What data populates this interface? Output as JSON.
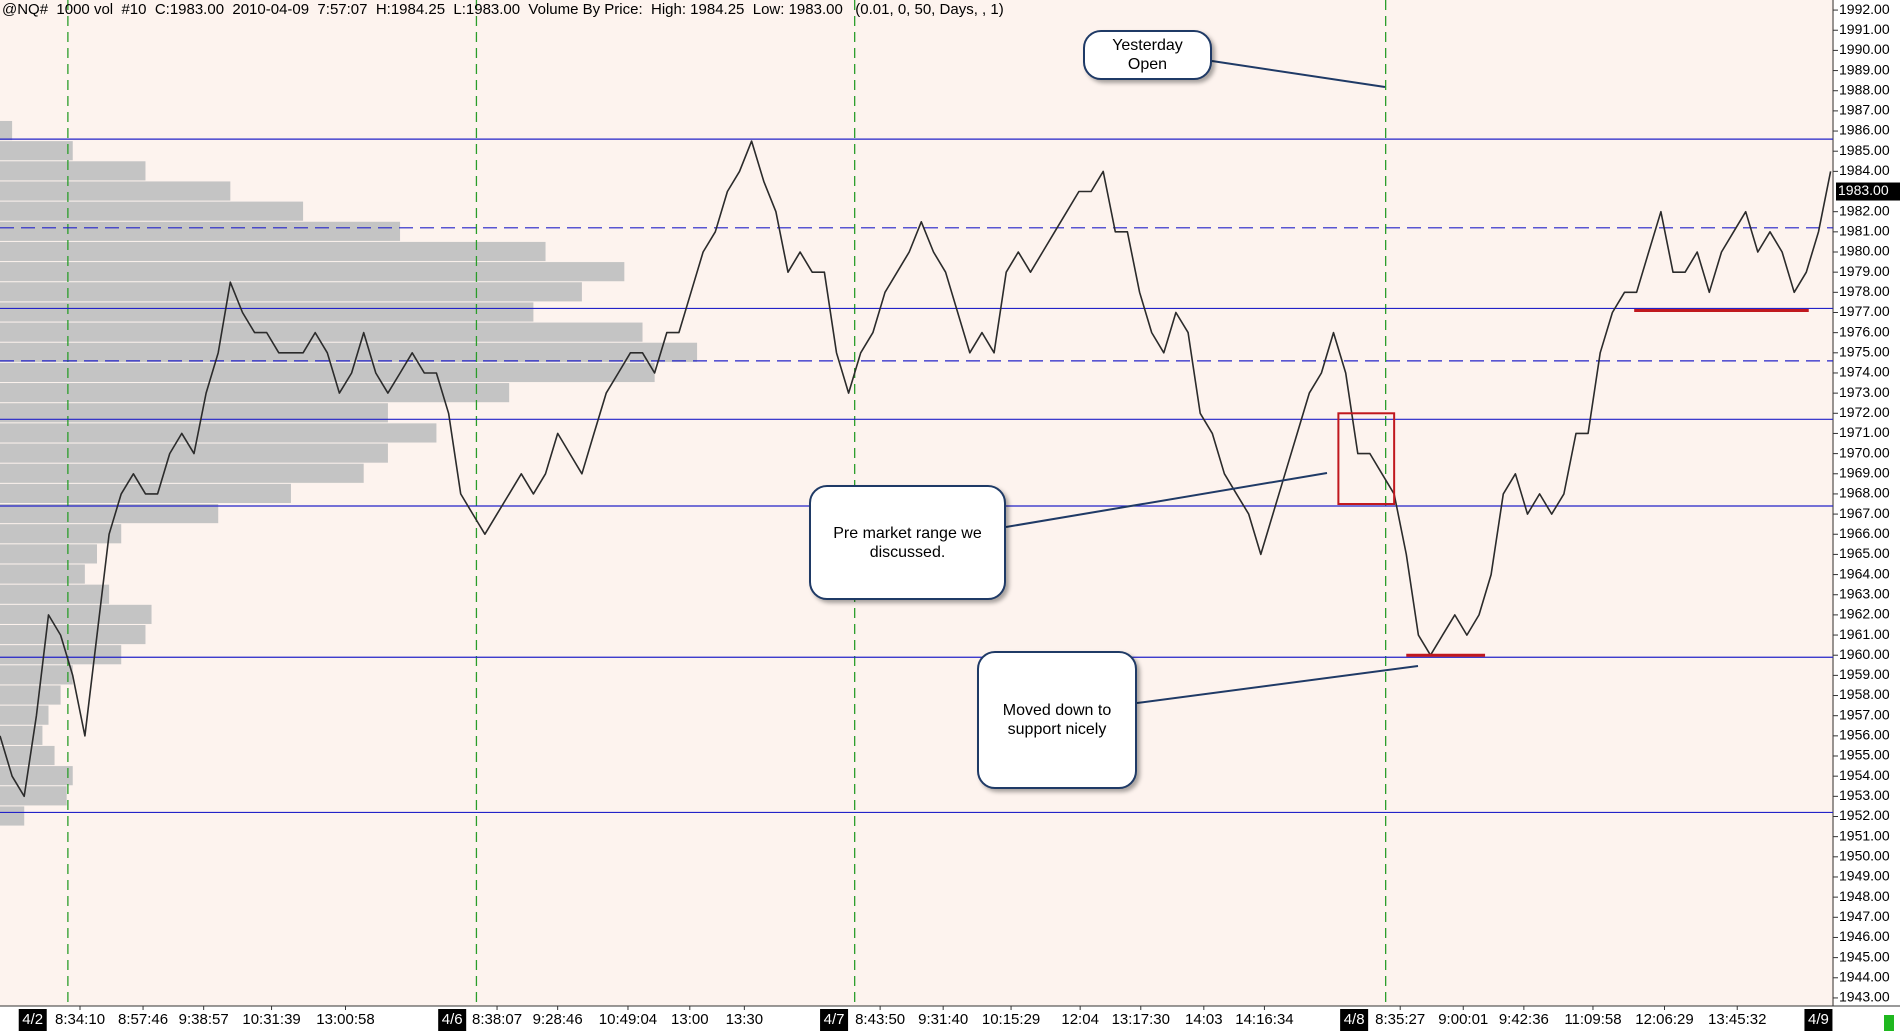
{
  "chart_data": {
    "type": "line",
    "title": "@NQ#  1000 vol  #10  C:1983.00  2010-04-09  7:57:07  H:1984.25  L:1983.00  Volume By Price:  High: 1984.25  Low: 1983.00   (0.01, 0, 50, Days, , 1)",
    "xlim": [
      0,
      151.2
    ],
    "ylim": [
      1942.6,
      1992.5
    ],
    "x": [
      0,
      1,
      2,
      3,
      4,
      5,
      6,
      7,
      8,
      9,
      10,
      11,
      12,
      13,
      14,
      15,
      16,
      17,
      18,
      19,
      20,
      21,
      22,
      23,
      24,
      25,
      26,
      27,
      28,
      29,
      30,
      31,
      32,
      33,
      34,
      35,
      36,
      37,
      38,
      39,
      40,
      41,
      42,
      43,
      44,
      45,
      46,
      47,
      48,
      49,
      50,
      51,
      52,
      53,
      54,
      55,
      56,
      57,
      58,
      59,
      60,
      61,
      62,
      63,
      64,
      65,
      66,
      67,
      68,
      69,
      70,
      71,
      72,
      73,
      74,
      75,
      76,
      77,
      78,
      79,
      80,
      81,
      82,
      83,
      84,
      85,
      86,
      87,
      88,
      89,
      90,
      91,
      92,
      93,
      94,
      95,
      96,
      97,
      98,
      99,
      100,
      101,
      102,
      103,
      104,
      105,
      106,
      107,
      108,
      109,
      110,
      111,
      112,
      113,
      114,
      115,
      116,
      117,
      118,
      119,
      120,
      121,
      122,
      123,
      124,
      125,
      126,
      127,
      128,
      129,
      130,
      131,
      132,
      133,
      134,
      135,
      136,
      137,
      138,
      139,
      140,
      141,
      142,
      143,
      144,
      145,
      146,
      147,
      148,
      149,
      150,
      151
    ],
    "series": [
      {
        "color": "#2b2b2b",
        "values": [
          1956,
          1954,
          1953,
          1957,
          1962,
          1961,
          1959,
          1956,
          1961,
          1966,
          1968,
          1969,
          1968,
          1968,
          1970,
          1971,
          1970,
          1973,
          1975,
          1978.5,
          1977,
          1976,
          1976,
          1975,
          1975,
          1975,
          1976,
          1975,
          1973,
          1974,
          1976,
          1974,
          1973,
          1974,
          1975,
          1974,
          1974,
          1972,
          1968,
          1967,
          1966,
          1967,
          1968,
          1969,
          1968,
          1969,
          1971,
          1970,
          1969,
          1971,
          1973,
          1974,
          1975,
          1975,
          1974,
          1976,
          1976,
          1978,
          1980,
          1981,
          1983,
          1984,
          1985.5,
          1983.5,
          1982,
          1979,
          1980,
          1979,
          1979,
          1975,
          1973,
          1975,
          1976,
          1978,
          1979,
          1980,
          1981.5,
          1980,
          1979,
          1977,
          1975,
          1976,
          1975,
          1979,
          1980,
          1979,
          1980,
          1981,
          1982,
          1983,
          1983,
          1984,
          1981,
          1981,
          1978,
          1976,
          1975,
          1977,
          1976,
          1972,
          1971,
          1969,
          1968,
          1967,
          1965,
          1967,
          1969,
          1971,
          1973,
          1974,
          1976,
          1974,
          1970,
          1970,
          1969,
          1968,
          1965,
          1961,
          1960,
          1961,
          1962,
          1961,
          1962,
          1964,
          1968,
          1969,
          1967,
          1968,
          1967,
          1968,
          1971,
          1971,
          1975,
          1977,
          1978,
          1978,
          1980,
          1982,
          1979,
          1979,
          1980,
          1978,
          1980,
          1981,
          1982,
          1980,
          1981,
          1980,
          1978,
          1979,
          1981,
          1984
        ]
      }
    ],
    "yticks": [
      {
        "value": 1943,
        "label": "1943.00"
      },
      {
        "value": 1944,
        "label": "1944.00"
      },
      {
        "value": 1945,
        "label": "1945.00"
      },
      {
        "value": 1946,
        "label": "1946.00"
      },
      {
        "value": 1947,
        "label": "1947.00"
      },
      {
        "value": 1948,
        "label": "1948.00"
      },
      {
        "value": 1949,
        "label": "1949.00"
      },
      {
        "value": 1950,
        "label": "1950.00"
      },
      {
        "value": 1951,
        "label": "1951.00"
      },
      {
        "value": 1952,
        "label": "1952.00"
      },
      {
        "value": 1953,
        "label": "1953.00"
      },
      {
        "value": 1954,
        "label": "1954.00"
      },
      {
        "value": 1955,
        "label": "1955.00"
      },
      {
        "value": 1956,
        "label": "1956.00"
      },
      {
        "value": 1957,
        "label": "1957.00"
      },
      {
        "value": 1958,
        "label": "1958.00"
      },
      {
        "value": 1959,
        "label": "1959.00"
      },
      {
        "value": 1960,
        "label": "1960.00"
      },
      {
        "value": 1961,
        "label": "1961.00"
      },
      {
        "value": 1962,
        "label": "1962.00"
      },
      {
        "value": 1963,
        "label": "1963.00"
      },
      {
        "value": 1964,
        "label": "1964.00"
      },
      {
        "value": 1965,
        "label": "1965.00"
      },
      {
        "value": 1966,
        "label": "1966.00"
      },
      {
        "value": 1967,
        "label": "1967.00"
      },
      {
        "value": 1968,
        "label": "1968.00"
      },
      {
        "value": 1969,
        "label": "1969.00"
      },
      {
        "value": 1970,
        "label": "1970.00"
      },
      {
        "value": 1971,
        "label": "1971.00"
      },
      {
        "value": 1972,
        "label": "1972.00"
      },
      {
        "value": 1973,
        "label": "1973.00"
      },
      {
        "value": 1974,
        "label": "1974.00"
      },
      {
        "value": 1975,
        "label": "1975.00"
      },
      {
        "value": 1976,
        "label": "1976.00"
      },
      {
        "value": 1977,
        "label": "1977.00"
      },
      {
        "value": 1978,
        "label": "1978.00"
      },
      {
        "value": 1979,
        "label": "1979.00"
      },
      {
        "value": 1980,
        "label": "1980.00"
      },
      {
        "value": 1981,
        "label": "1981.00"
      },
      {
        "value": 1982,
        "label": "1982.00"
      },
      {
        "value": 1984,
        "label": "1984.00"
      },
      {
        "value": 1985,
        "label": "1985.00"
      },
      {
        "value": 1986,
        "label": "1986.00"
      },
      {
        "value": 1987,
        "label": "1987.00"
      },
      {
        "value": 1988,
        "label": "1988.00"
      },
      {
        "value": 1989,
        "label": "1989.00"
      },
      {
        "value": 1990,
        "label": "1990.00"
      },
      {
        "value": 1991,
        "label": "1991.00"
      },
      {
        "value": 1992,
        "label": "1992.00"
      }
    ],
    "last_price": {
      "value": 1983,
      "label": "1983.00"
    },
    "xticks": [
      {
        "value": 6.6,
        "label": "8:34:10"
      },
      {
        "value": 11.8,
        "label": "8:57:46"
      },
      {
        "value": 16.8,
        "label": "9:38:57"
      },
      {
        "value": 22.4,
        "label": "10:31:39"
      },
      {
        "value": 28.5,
        "label": "13:00:58"
      },
      {
        "value": 41,
        "label": "8:38:07"
      },
      {
        "value": 46,
        "label": "9:28:46"
      },
      {
        "value": 51.8,
        "label": "10:49:04"
      },
      {
        "value": 56.9,
        "label": "13:00"
      },
      {
        "value": 61.4,
        "label": "13:30"
      },
      {
        "value": 72.6,
        "label": "8:43:50"
      },
      {
        "value": 77.8,
        "label": "9:31:40"
      },
      {
        "value": 83.4,
        "label": "10:15:29"
      },
      {
        "value": 89.1,
        "label": "12:04"
      },
      {
        "value": 94.1,
        "label": "13:17:30"
      },
      {
        "value": 99.3,
        "label": "14:03"
      },
      {
        "value": 104.3,
        "label": "14:16:34"
      },
      {
        "value": 115.5,
        "label": "8:35:27"
      },
      {
        "value": 120.7,
        "label": "9:00:01"
      },
      {
        "value": 125.7,
        "label": "9:42:36"
      },
      {
        "value": 131.4,
        "label": "11:09:58"
      },
      {
        "value": 137.3,
        "label": "12:06:29"
      },
      {
        "value": 143.3,
        "label": "13:45:32"
      }
    ],
    "date_ticks": [
      {
        "value": 2.7,
        "label": "4/2"
      },
      {
        "value": 37.3,
        "label": "4/6"
      },
      {
        "value": 68.8,
        "label": "4/7"
      },
      {
        "value": 111.7,
        "label": "4/8"
      },
      {
        "value": 150,
        "label": "4/9"
      }
    ],
    "sessions": [
      5.6,
      39.3,
      70.5,
      114.3
    ],
    "session_color": "#2a9d2a",
    "levels": [
      {
        "value": 1985.6,
        "style": "solid"
      },
      {
        "value": 1981.2,
        "style": "dashed"
      },
      {
        "value": 1977.2,
        "style": "solid"
      },
      {
        "value": 1974.6,
        "style": "dashed"
      },
      {
        "value": 1971.7,
        "style": "solid"
      },
      {
        "value": 1967.4,
        "style": "solid"
      },
      {
        "value": 1959.9,
        "style": "solid"
      },
      {
        "value": 1952.2,
        "style": "solid"
      }
    ],
    "level_color": "#2323c8",
    "volume_profile": {
      "color": "#c4c4c4",
      "prices": [
        1986,
        1985,
        1984,
        1983,
        1982,
        1981,
        1980,
        1979,
        1978,
        1977,
        1976,
        1975,
        1974,
        1973,
        1972,
        1971,
        1970,
        1969,
        1968,
        1967,
        1966,
        1965,
        1964,
        1963,
        1962,
        1961,
        1960,
        1959,
        1958,
        1957,
        1956,
        1955,
        1954,
        1953,
        1952
      ],
      "values": [
        10,
        60,
        120,
        190,
        250,
        330,
        450,
        515,
        480,
        440,
        530,
        575,
        540,
        420,
        320,
        360,
        320,
        300,
        240,
        180,
        100,
        80,
        70,
        90,
        125,
        120,
        100,
        60,
        50,
        40,
        35,
        45,
        60,
        55,
        20
      ]
    },
    "highlight_color": "#c0181e",
    "range_box": {
      "x": [
        110.4,
        115
      ],
      "y": [
        1967.5,
        1972
      ]
    },
    "support_lines": [
      {
        "value": 1960,
        "x": [
          116,
          122.5
        ]
      },
      {
        "value": 1977.1,
        "x": [
          134.8,
          149.2
        ]
      }
    ],
    "annotations": [
      "Yesterday Open",
      "Pre market range we discussed.",
      "Moved down to support nicely"
    ]
  }
}
